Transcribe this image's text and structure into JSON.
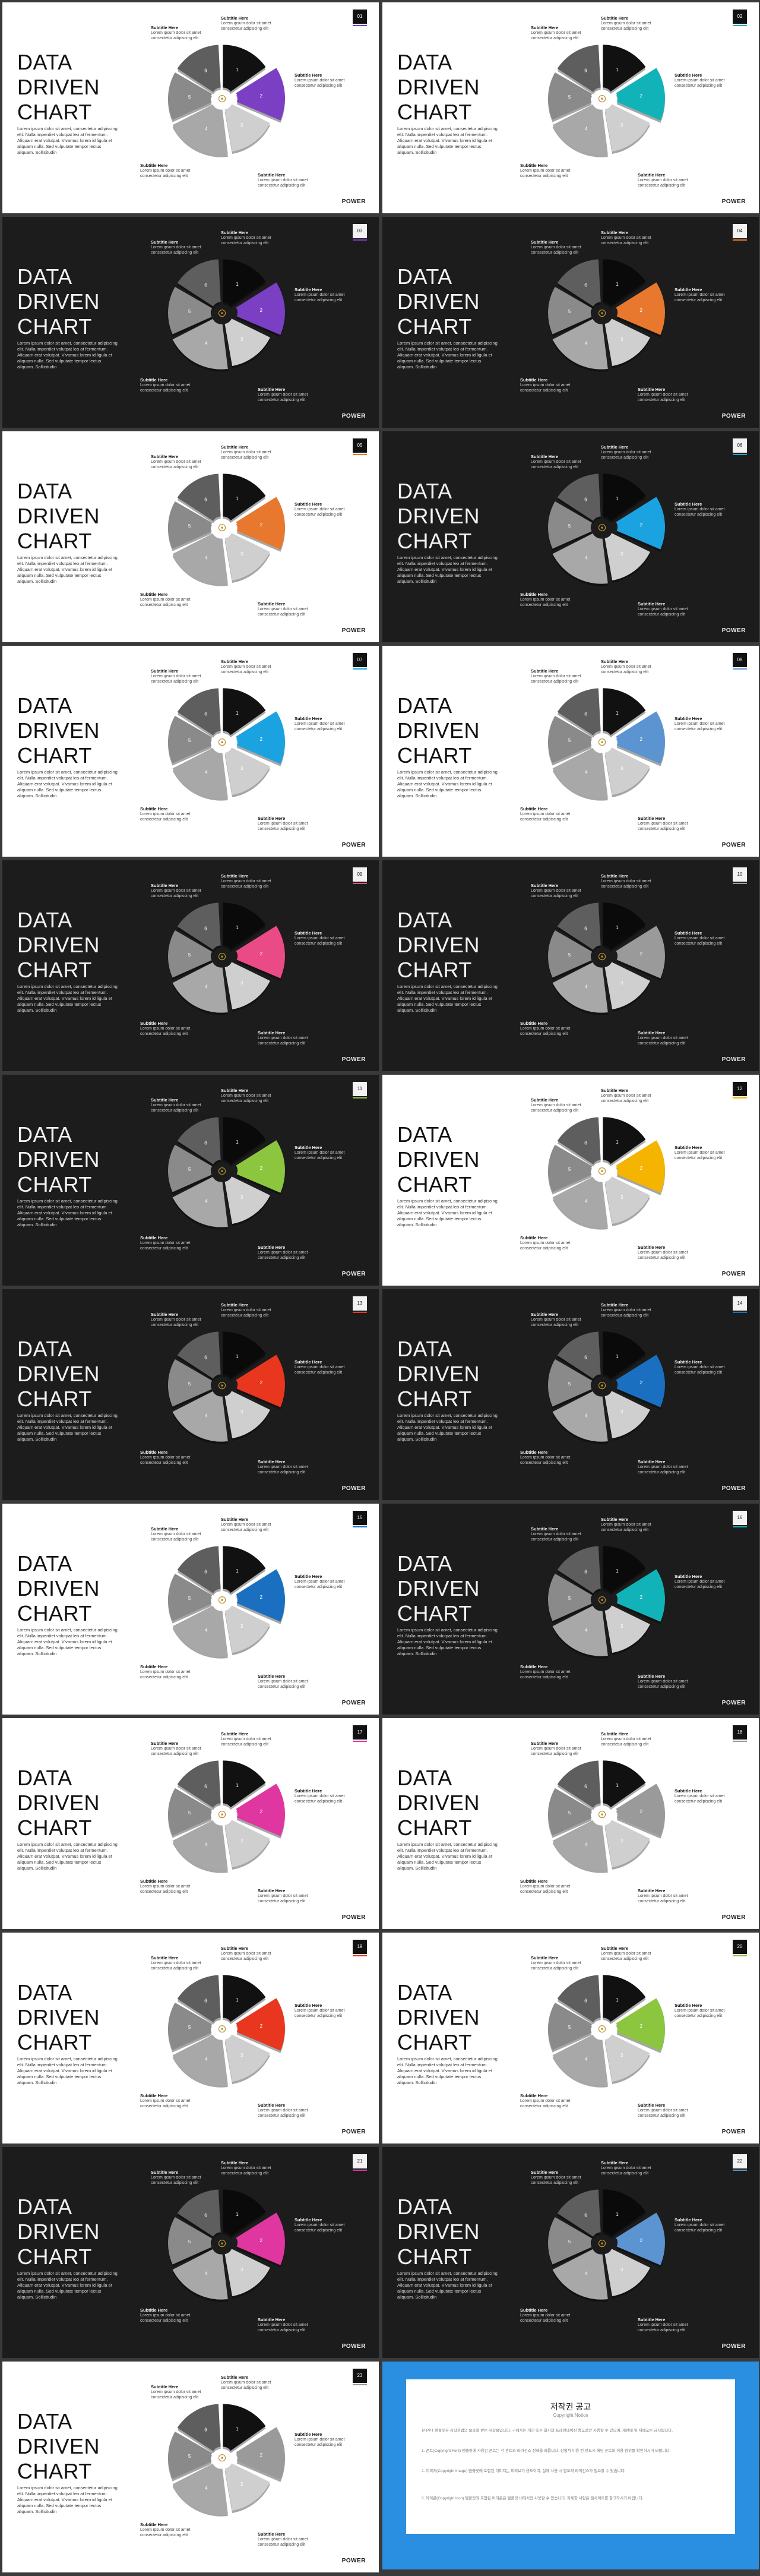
{
  "slide_common": {
    "title": "DATA\nDRIVEN\nCHART",
    "body": "Lorem ipsum dolor sit amet, consectetur adipiscing elit. Nulla imperdiet volutpat leo at fermentum. Aliquam erat volutpat. Vivamus lorem id ligula et aliquam nulla. Sed vulputate tempor lectus aliquam. Sollicitudin",
    "subtitle_label": "Subtitle Here",
    "caption_text": "Lorem ipsum dolor sit amet consectetur adipiscing elit",
    "brand": "POWER",
    "slice_labels": [
      "1",
      "2",
      "3",
      "4",
      "5",
      "6"
    ],
    "center_icon": "lightbulb-icon"
  },
  "slides": [
    {
      "theme": "white",
      "accent": "#7b3fc4",
      "corner": "01"
    },
    {
      "theme": "white",
      "accent": "#12b3b8",
      "corner": "02"
    },
    {
      "theme": "dark",
      "accent": "#7b3fc4",
      "corner": "03"
    },
    {
      "theme": "dark",
      "accent": "#e8782e",
      "corner": "04"
    },
    {
      "theme": "white",
      "accent": "#e8782e",
      "corner": "05"
    },
    {
      "theme": "dark",
      "accent": "#1aa3e0",
      "corner": "06"
    },
    {
      "theme": "white",
      "accent": "#1aa3e0",
      "corner": "07"
    },
    {
      "theme": "white",
      "accent": "#5b94d0",
      "corner": "08"
    },
    {
      "theme": "dark",
      "accent": "#ea4b86",
      "corner": "09"
    },
    {
      "theme": "dark",
      "accent": "#9a9a9a",
      "corner": "10"
    },
    {
      "theme": "dark",
      "accent": "#8cc63f",
      "corner": "11"
    },
    {
      "theme": "white",
      "accent": "#f5b400",
      "corner": "12"
    },
    {
      "theme": "dark",
      "accent": "#e8361f",
      "corner": "13"
    },
    {
      "theme": "dark",
      "accent": "#1a6fc1",
      "corner": "14"
    },
    {
      "theme": "white",
      "accent": "#1a6fc1",
      "corner": "15"
    },
    {
      "theme": "dark",
      "accent": "#12b3b8",
      "corner": "16"
    },
    {
      "theme": "white",
      "accent": "#e0369f",
      "corner": "17"
    },
    {
      "theme": "white",
      "accent": "#9a9a9a",
      "corner": "18"
    },
    {
      "theme": "white",
      "accent": "#e8361f",
      "corner": "19"
    },
    {
      "theme": "white",
      "accent": "#8cc63f",
      "corner": "20"
    },
    {
      "theme": "dark",
      "accent": "#e0369f",
      "corner": "21"
    },
    {
      "theme": "dark",
      "accent": "#5b94d0",
      "corner": "22"
    },
    {
      "theme": "white",
      "accent": "#9a9a9a",
      "corner": "23"
    }
  ],
  "notice": {
    "title": "저작권 공고",
    "subtitle": "Copyright Notice",
    "paragraphs": [
      "본 PPT 템플릿은 저작권법의 보호를 받는 저작물입니다. 구매자는 개인 또는 회사의 프레젠테이션 용도로만 사용할 수 있으며, 재판매 및 재배포는 금지됩니다.",
      "1. 폰트(Copyright Font) 템플릿에 사용된 폰트는 각 폰트의 라이선스 정책을 따릅니다. 상업적 이용 전 반드시 해당 폰트의 이용 범위를 확인하시기 바랍니다.",
      "2. 이미지(Copyright Image) 템플릿에 포함된 이미지는 미리보기 용도이며, 실제 사용 시 별도의 라이선스가 필요할 수 있습니다.",
      "3. 아이콘(Copyright Icon) 템플릿에 포함된 아이콘은 템플릿 내에서만 사용할 수 있습니다. 자세한 사항은 웹사이트를 참고하시기 바랍니다."
    ],
    "border": "#2a8fe0"
  }
}
